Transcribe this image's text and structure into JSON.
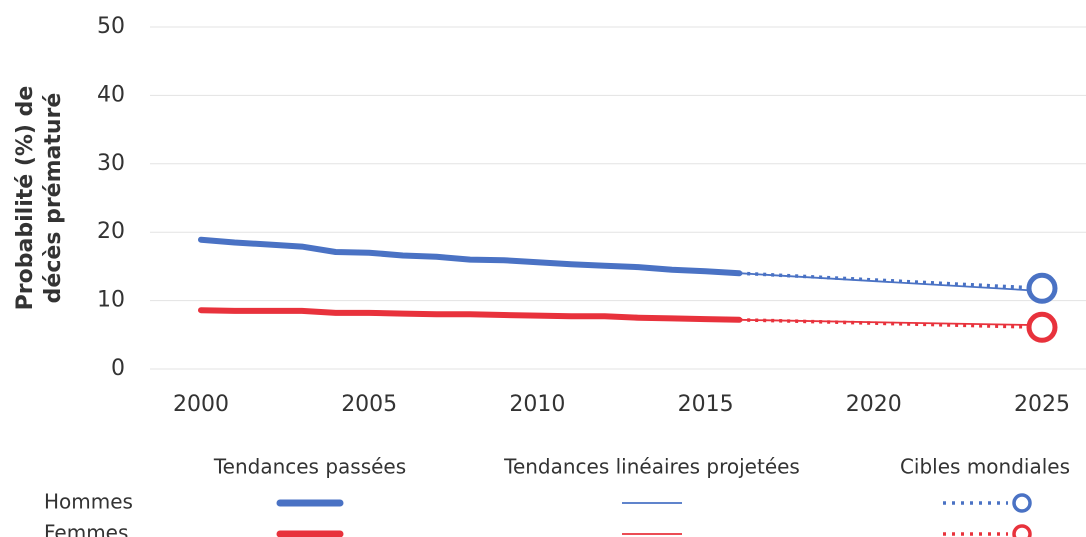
{
  "chart_data": {
    "type": "line",
    "ylabel": [
      "Probabilité (%) de",
      "décès prématuré"
    ],
    "xlim": [
      2000,
      2025
    ],
    "xticks": [
      2000,
      2005,
      2010,
      2015,
      2020,
      2025
    ],
    "ylim": [
      0,
      50
    ],
    "yticks": [
      0,
      10,
      20,
      30,
      40,
      50
    ],
    "grid": true,
    "legend_columns": [
      "Tendances passées",
      "Tendances linéaires projetées",
      "Cibles mondiales"
    ],
    "series": [
      {
        "name": "Hommes",
        "color": "#4a72c4",
        "past": {
          "x": [
            2000,
            2001,
            2002,
            2003,
            2004,
            2005,
            2006,
            2007,
            2008,
            2009,
            2010,
            2011,
            2012,
            2013,
            2014,
            2015,
            2016
          ],
          "values": [
            18.9,
            18.5,
            18.2,
            17.9,
            17.1,
            17.0,
            16.6,
            16.4,
            16.0,
            15.9,
            15.6,
            15.3,
            15.1,
            14.9,
            14.5,
            14.3,
            14.0
          ]
        },
        "projected": {
          "x": [
            2016,
            2025
          ],
          "values": [
            14.0,
            11.4
          ]
        },
        "target": {
          "x": [
            2016,
            2025
          ],
          "values": [
            14.0,
            11.8
          ]
        }
      },
      {
        "name": "Femmes",
        "color": "#e8323c",
        "past": {
          "x": [
            2000,
            2001,
            2002,
            2003,
            2004,
            2005,
            2006,
            2007,
            2008,
            2009,
            2010,
            2011,
            2012,
            2013,
            2014,
            2015,
            2016
          ],
          "values": [
            8.6,
            8.5,
            8.5,
            8.5,
            8.2,
            8.2,
            8.1,
            8.0,
            8.0,
            7.9,
            7.8,
            7.7,
            7.7,
            7.5,
            7.4,
            7.3,
            7.2
          ]
        },
        "projected": {
          "x": [
            2016,
            2025
          ],
          "values": [
            7.2,
            6.4
          ]
        },
        "target": {
          "x": [
            2016,
            2025
          ],
          "values": [
            7.2,
            6.1
          ]
        }
      }
    ]
  }
}
